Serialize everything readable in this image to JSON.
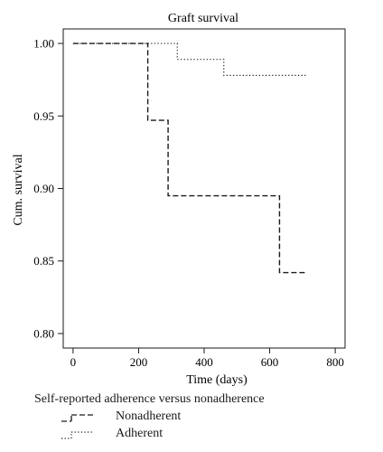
{
  "chart_data": {
    "type": "line",
    "step": true,
    "title": "Graft survival",
    "xlabel": "Time (days)",
    "ylabel": "Cum. survival",
    "xlim": [
      -30,
      830
    ],
    "ylim": [
      0.79,
      1.01
    ],
    "xticks": [
      0,
      200,
      400,
      600,
      800
    ],
    "yticks": [
      0.8,
      0.85,
      0.9,
      0.95,
      1.0
    ],
    "ytick_labels": [
      "0.80",
      "0.85",
      "0.90",
      "0.95",
      "1.00"
    ],
    "grid": false,
    "series": [
      {
        "name": "Nonadherent",
        "style": "dashed",
        "color": "#1a1a1a",
        "x": [
          0,
          228,
          228,
          290,
          290,
          630,
          630,
          715
        ],
        "y": [
          1.0,
          1.0,
          0.947,
          0.947,
          0.895,
          0.895,
          0.842,
          0.842
        ]
      },
      {
        "name": "Adherent",
        "style": "dotted",
        "color": "#1a1a1a",
        "x": [
          0,
          318,
          318,
          460,
          460,
          715
        ],
        "y": [
          1.0,
          1.0,
          0.989,
          0.989,
          0.978,
          0.978
        ]
      }
    ],
    "legend": {
      "title": "Self-reported adherence versus nonadherence",
      "placement": "bottom-left",
      "entries": [
        "Nonadherent",
        "Adherent"
      ]
    }
  }
}
